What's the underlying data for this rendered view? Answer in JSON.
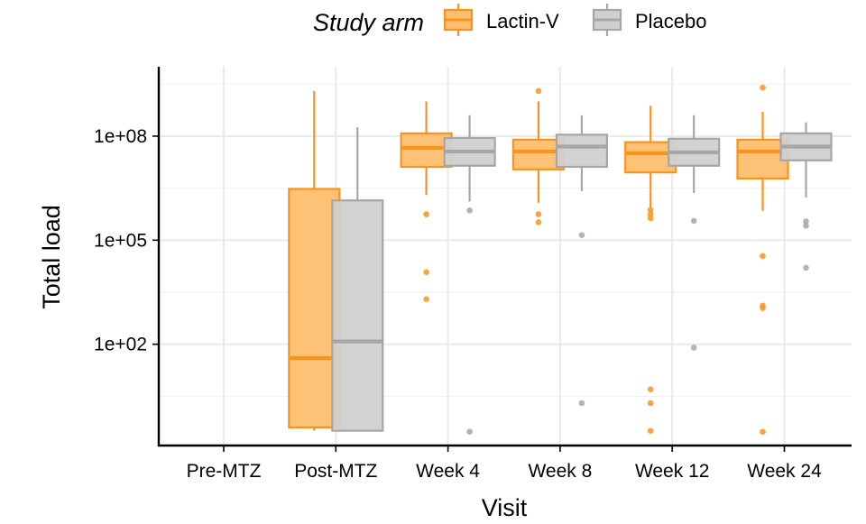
{
  "chart_data": {
    "type": "boxplot",
    "legend": {
      "title": "Study arm",
      "position": "top",
      "entries": [
        "Lactin-V",
        "Placebo"
      ]
    },
    "xlabel": "Visit",
    "ylabel": "Total load",
    "y_scale": "log10",
    "ylim": [
      0.12,
      10000000000
    ],
    "y_ticks": [
      {
        "value": 100,
        "label": "1e+02"
      },
      {
        "value": 100000,
        "label": "1e+05"
      },
      {
        "value": 100000000,
        "label": "1e+08"
      }
    ],
    "grid": true,
    "categories": [
      "Pre-MTZ",
      "Post-MTZ",
      "Week 4",
      "Week 8",
      "Week 12",
      "Week 24"
    ],
    "series": [
      {
        "name": "Lactin-V",
        "color": "#f7941d",
        "fill": "#fdbf6f",
        "boxes": [
          null,
          {
            "lower_whisker": 0.32,
            "q1": 0.4,
            "median": 40,
            "q3": 3000000,
            "upper_whisker": 2000000000,
            "outliers": []
          },
          {
            "lower_whisker": 2000000,
            "q1": 13000000,
            "median": 46000000,
            "q3": 120000000,
            "upper_whisker": 1000000000,
            "outliers": [
              560000,
              12000,
              2000
            ]
          },
          {
            "lower_whisker": 1200000,
            "q1": 11000000,
            "median": 36000000,
            "q3": 79000000,
            "upper_whisker": 1000000000,
            "outliers": [
              560000,
              330000,
              2000000000
            ]
          },
          {
            "lower_whisker": 900000,
            "q1": 9000000,
            "median": 32000000,
            "q3": 67000000,
            "upper_whisker": 750000000,
            "outliers": [
              750000,
              560000,
              430000,
              5,
              2,
              0.32
            ]
          },
          {
            "lower_whisker": 700000,
            "q1": 6000000,
            "median": 36000000,
            "q3": 79000000,
            "upper_whisker": 500000000,
            "outliers": [
              35000,
              1300,
              1100,
              2500000000,
              0.3
            ]
          }
        ]
      },
      {
        "name": "Placebo",
        "color": "#a6a6a6",
        "fill": "#d0d0d0",
        "boxes": [
          null,
          {
            "lower_whisker": 0.32,
            "q1": 0.32,
            "median": 120,
            "q3": 1400000,
            "upper_whisker": 180000000,
            "outliers": []
          },
          {
            "lower_whisker": 1300000,
            "q1": 14000000,
            "median": 36000000,
            "q3": 88000000,
            "upper_whisker": 400000000,
            "outliers": [
              720000,
              0.3
            ]
          },
          {
            "lower_whisker": 2600000,
            "q1": 13000000,
            "median": 50000000,
            "q3": 110000000,
            "upper_whisker": 400000000,
            "outliers": [
              140000,
              2
            ]
          },
          {
            "lower_whisker": 2300000,
            "q1": 14000000,
            "median": 34000000,
            "q3": 84000000,
            "upper_whisker": 400000000,
            "outliers": [
              360000,
              80
            ]
          },
          {
            "lower_whisker": 1700000,
            "q1": 20000000,
            "median": 50000000,
            "q3": 120000000,
            "upper_whisker": 250000000,
            "outliers": [
              350000,
              260000,
              16000
            ]
          }
        ]
      }
    ]
  }
}
